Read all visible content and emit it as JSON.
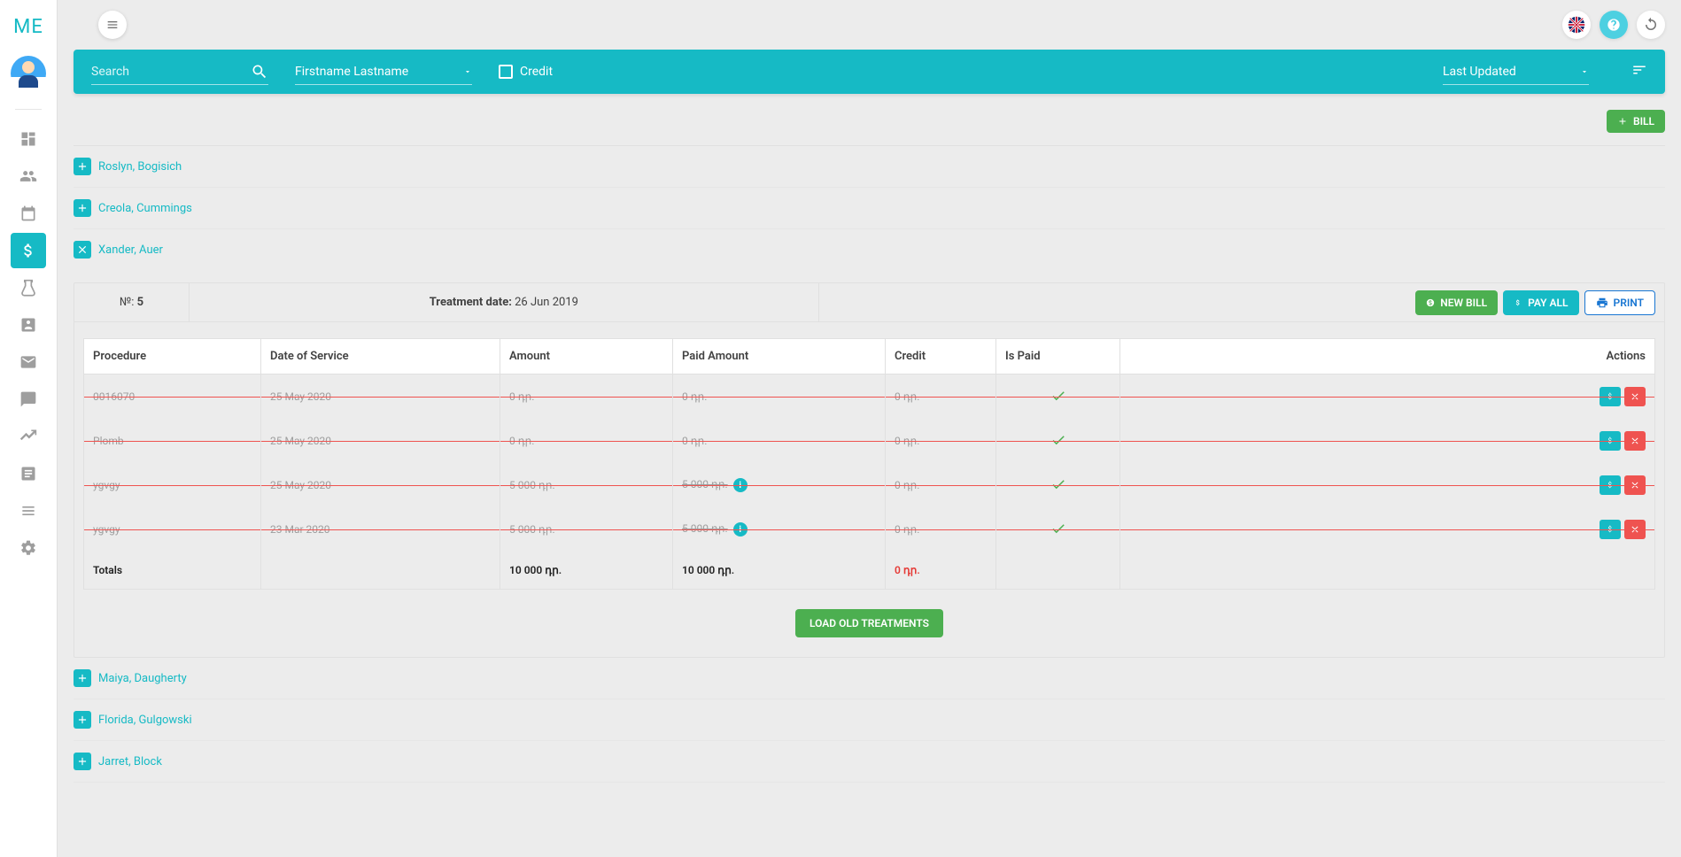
{
  "app": {
    "logo": "ME"
  },
  "sidebar_items": [
    {
      "name": "dashboard",
      "active": false
    },
    {
      "name": "patients",
      "active": false
    },
    {
      "name": "calendar",
      "active": false
    },
    {
      "name": "billing",
      "active": true
    },
    {
      "name": "lab",
      "active": false
    },
    {
      "name": "contacts",
      "active": false
    },
    {
      "name": "mail",
      "active": false
    },
    {
      "name": "chat",
      "active": false
    },
    {
      "name": "analytics",
      "active": false
    },
    {
      "name": "notes",
      "active": false
    },
    {
      "name": "list",
      "active": false
    },
    {
      "name": "settings",
      "active": false
    }
  ],
  "filter": {
    "search_placeholder": "Search",
    "name_filter_label": "Firstname Lastname",
    "credit_label": "Credit",
    "sort_label": "Last Updated"
  },
  "bill_button": "BILL",
  "patients": {
    "before": [
      {
        "name": "Roslyn, Bogisich",
        "open": false
      },
      {
        "name": "Creola, Cummings",
        "open": false
      }
    ],
    "open": {
      "name": "Xander, Auer",
      "number_label": "№:",
      "number": "5",
      "date_label": "Treatment date:",
      "date": "26 Jun 2019",
      "new_bill": "NEW BILL",
      "pay_all": "PAY ALL",
      "print": "PRINT"
    },
    "after": [
      {
        "name": "Maiya, Daugherty",
        "open": false
      },
      {
        "name": "Florida, Gulgowski",
        "open": false
      },
      {
        "name": "Jarret, Block",
        "open": false
      }
    ]
  },
  "table": {
    "columns": {
      "procedure": "Procedure",
      "dos": "Date of Service",
      "amount": "Amount",
      "paid": "Paid Amount",
      "credit": "Credit",
      "is_paid": "Is Paid",
      "actions": "Actions"
    },
    "rows": [
      {
        "procedure": "0016070",
        "dos": "25 May 2020",
        "amount": "0 դր.",
        "paid": "0 դր.",
        "paid_info": false,
        "credit": "0 դր.",
        "is_paid": true
      },
      {
        "procedure": "Plomb",
        "dos": "25 May 2020",
        "amount": "0 դր.",
        "paid": "0 դր.",
        "paid_info": false,
        "credit": "0 դր.",
        "is_paid": true
      },
      {
        "procedure": "ygvgy",
        "dos": "25 May 2020",
        "amount": "5 000 դր.",
        "paid": "5 000 դր.",
        "paid_info": true,
        "credit": "0 դր.",
        "is_paid": true
      },
      {
        "procedure": "ygvgy",
        "dos": "23 Mar 2020",
        "amount": "5 000 դր.",
        "paid": "5 000 դր.",
        "paid_info": true,
        "credit": "0 դր.",
        "is_paid": true
      }
    ],
    "totals": {
      "label": "Totals",
      "amount": "10 000 դր.",
      "paid": "10 000 դր.",
      "credit": "0 դր."
    },
    "load_old": "LOAD OLD TREATMENTS"
  },
  "colors": {
    "accent": "#16bac5",
    "green": "#4caf50",
    "red": "#ef5350",
    "blue": "#1976d2"
  }
}
